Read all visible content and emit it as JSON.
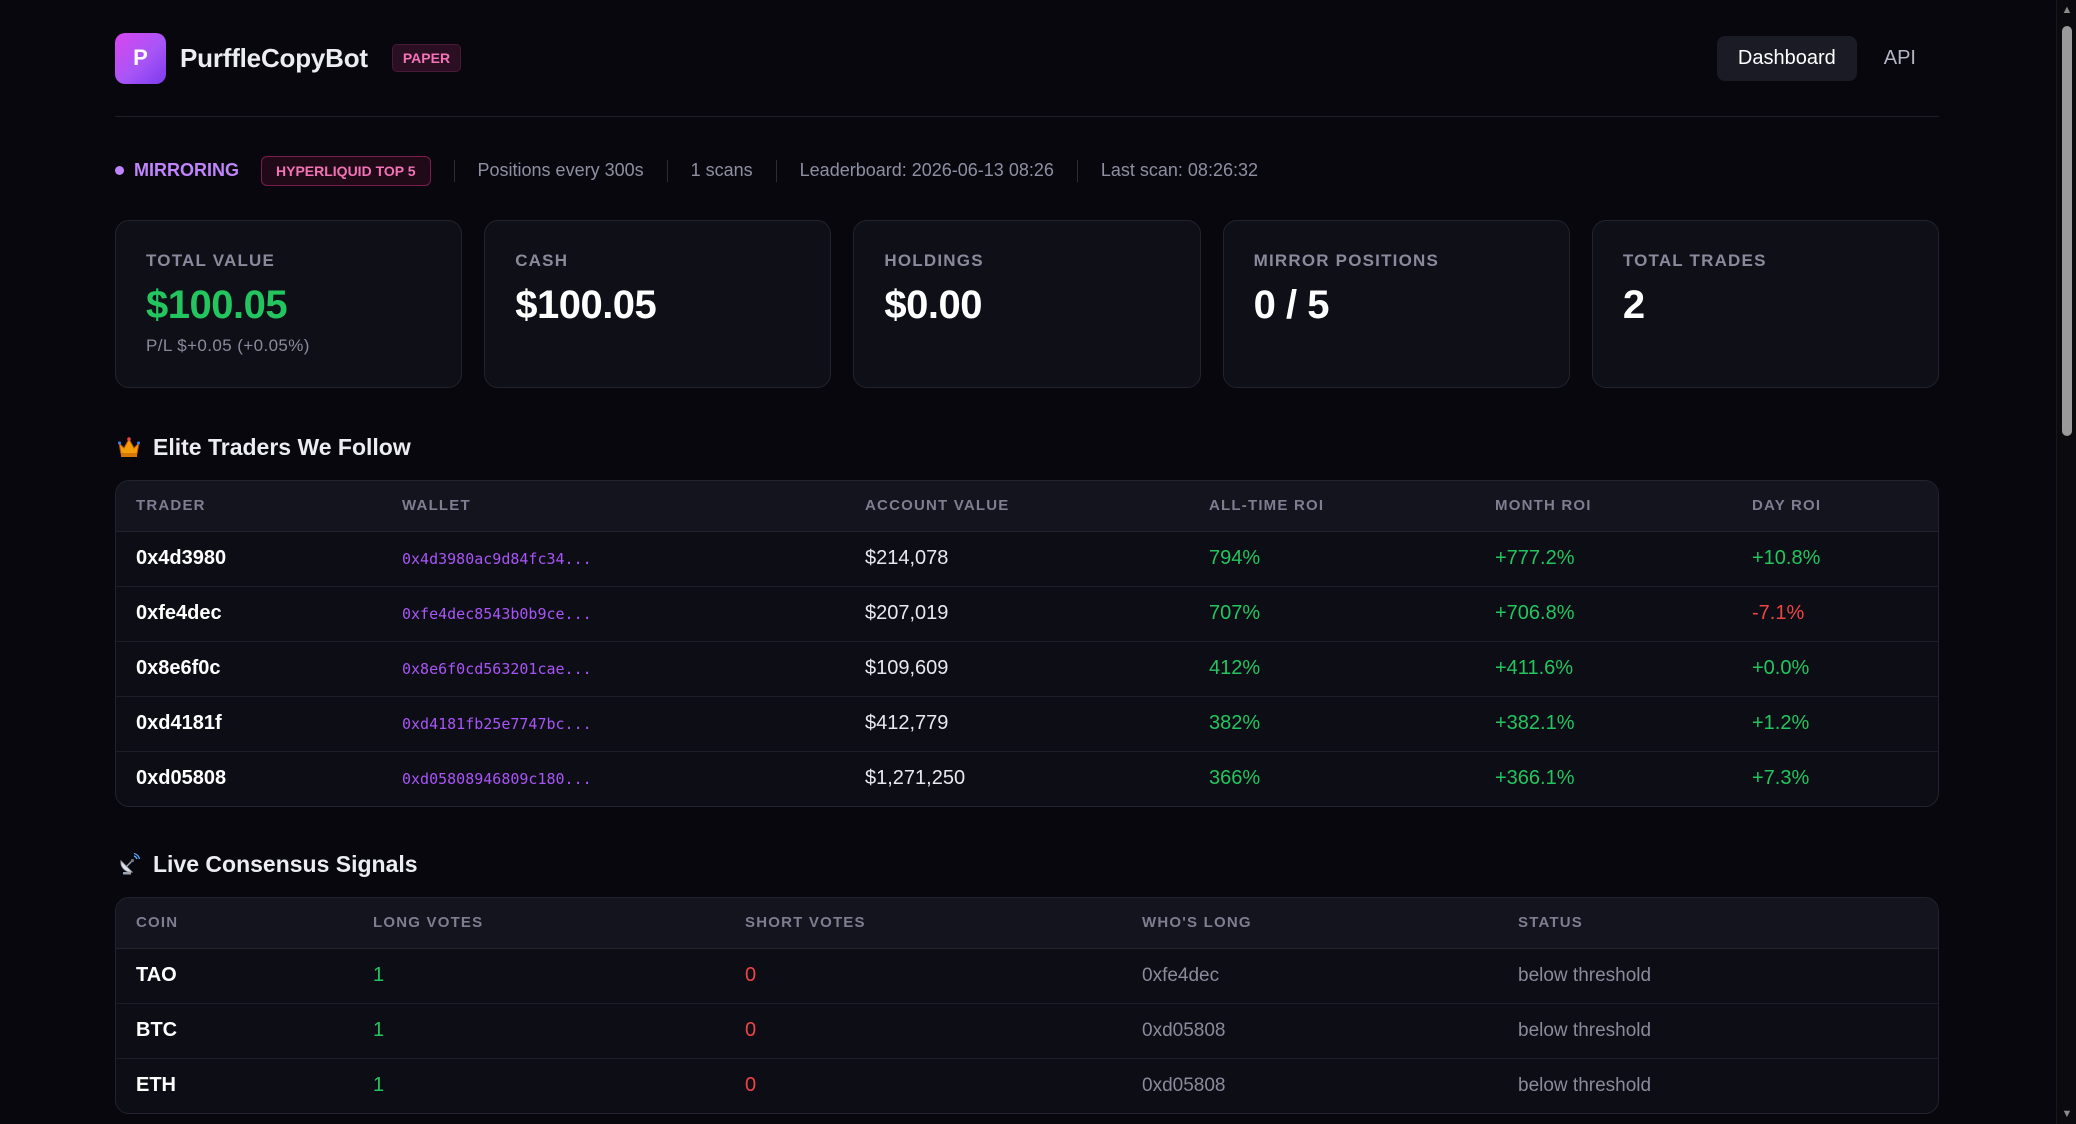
{
  "header": {
    "logo_letter": "P",
    "brand": "PurffleCopyBot",
    "mode_badge": "PAPER",
    "nav": [
      {
        "label": "Dashboard",
        "active": true
      },
      {
        "label": "API",
        "active": false
      }
    ]
  },
  "status": {
    "state": "MIRRORING",
    "source_badge": "HYPERLIQUID TOP 5",
    "positions_interval": "Positions every 300s",
    "scans": "1 scans",
    "leaderboard": "Leaderboard: 2026-06-13 08:26",
    "last_scan": "Last scan: 08:26:32"
  },
  "cards": [
    {
      "label": "TOTAL VALUE",
      "value": "$100.05",
      "sub": "P/L $+0.05 (+0.05%)",
      "accent": "#22c55e"
    },
    {
      "label": "CASH",
      "value": "$100.05"
    },
    {
      "label": "HOLDINGS",
      "value": "$0.00"
    },
    {
      "label": "MIRROR POSITIONS",
      "value": "0 / 5"
    },
    {
      "label": "TOTAL TRADES",
      "value": "2"
    }
  ],
  "elite": {
    "title": "Elite Traders We Follow",
    "icon": "crown-icon",
    "columns": [
      "TRADER",
      "WALLET",
      "ACCOUNT VALUE",
      "ALL-TIME ROI",
      "MONTH ROI",
      "DAY ROI"
    ],
    "rows": [
      {
        "trader": "0x4d3980",
        "wallet": "0x4d3980ac9d84fc34...",
        "account_value": "$214,078",
        "all_time_roi": "794%",
        "month_roi": "+777.2%",
        "day_roi": "+10.8%"
      },
      {
        "trader": "0xfe4dec",
        "wallet": "0xfe4dec8543b0b9ce...",
        "account_value": "$207,019",
        "all_time_roi": "707%",
        "month_roi": "+706.8%",
        "day_roi": "-7.1%"
      },
      {
        "trader": "0x8e6f0c",
        "wallet": "0x8e6f0cd563201cae...",
        "account_value": "$109,609",
        "all_time_roi": "412%",
        "month_roi": "+411.6%",
        "day_roi": "+0.0%"
      },
      {
        "trader": "0xd4181f",
        "wallet": "0xd4181fb25e7747bc...",
        "account_value": "$412,779",
        "all_time_roi": "382%",
        "month_roi": "+382.1%",
        "day_roi": "+1.2%"
      },
      {
        "trader": "0xd05808",
        "wallet": "0xd05808946809c180...",
        "account_value": "$1,271,250",
        "all_time_roi": "366%",
        "month_roi": "+366.1%",
        "day_roi": "+7.3%"
      }
    ]
  },
  "signals": {
    "title": "Live Consensus Signals",
    "icon": "satellite-dish-icon",
    "columns": [
      "COIN",
      "LONG VOTES",
      "SHORT VOTES",
      "WHO'S LONG",
      "STATUS"
    ],
    "rows": [
      {
        "coin": "TAO",
        "long_votes": "1",
        "short_votes": "0",
        "whos_long": "0xfe4dec",
        "status": "below threshold"
      },
      {
        "coin": "BTC",
        "long_votes": "1",
        "short_votes": "0",
        "whos_long": "0xd05808",
        "status": "below threshold"
      },
      {
        "coin": "ETH",
        "long_votes": "1",
        "short_votes": "0",
        "whos_long": "0xd05808",
        "status": "below threshold"
      }
    ]
  }
}
